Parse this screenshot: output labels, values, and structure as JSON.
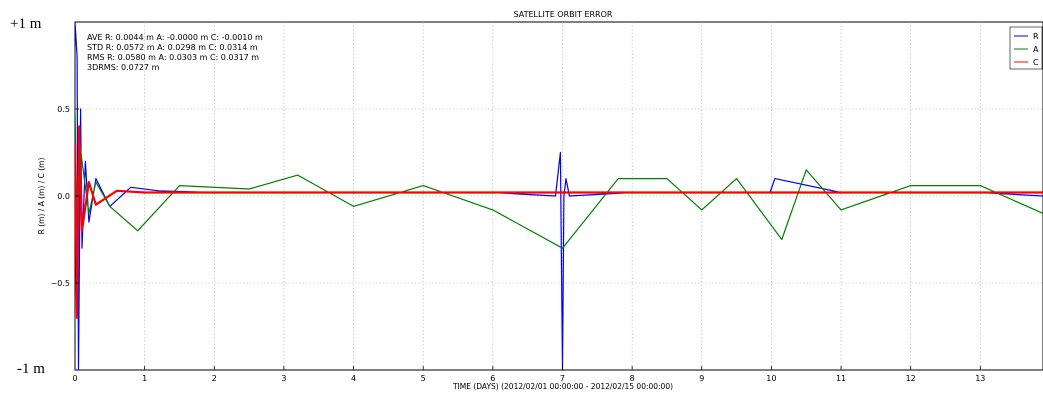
{
  "chart_data": {
    "type": "line",
    "title": "SATELLITE ORBIT ERROR",
    "xlabel": "TIME (DAYS) (2012/02/01 00:00:00 - 2012/02/15 00:00:00)",
    "ylabel": "R (m) / A (m) / C (m)",
    "xlim": [
      0,
      13.9
    ],
    "ylim": [
      -1,
      1
    ],
    "x_ticks": [
      0,
      1,
      2,
      3,
      4,
      5,
      6,
      7,
      8,
      9,
      10,
      11,
      12,
      13
    ],
    "x_tick_labels": [
      "0",
      "1",
      "2",
      "3",
      "4",
      "5",
      "6",
      "7",
      "8",
      "9",
      "10",
      "11",
      "12",
      "13"
    ],
    "y_ticks": [
      -0.5,
      0.0,
      0.5
    ],
    "y_tick_labels": [
      "−0.5",
      "0.0",
      "0.5"
    ],
    "y_extreme_labels": {
      "top": "+1 m",
      "bottom": "-1 m"
    },
    "grid": true,
    "legend_position": "top-right",
    "stats_text": [
      "AVE R: 0.0044 m A: -0.0000 m C: -0.0010 m",
      "STD R: 0.0572 m A: 0.0298 m C: 0.0314 m",
      "RMS R: 0.0580 m A: 0.0303 m C: 0.0317 m",
      "3DRMS: 0.0727 m"
    ],
    "series": [
      {
        "name": "R",
        "color": "#0000ff",
        "x": [
          0.0,
          0.03,
          0.05,
          0.08,
          0.1,
          0.15,
          0.2,
          0.3,
          0.5,
          0.8,
          1.2,
          2,
          3,
          4,
          5,
          6,
          6.9,
          6.97,
          7.0,
          7.02,
          7.05,
          7.1,
          8,
          9,
          9.98,
          10.05,
          11,
          12,
          13,
          13.9
        ],
        "values": [
          1.0,
          0.8,
          -1.0,
          0.5,
          -0.3,
          0.2,
          -0.15,
          0.1,
          -0.06,
          0.05,
          0.03,
          0.02,
          0.02,
          0.02,
          0.02,
          0.02,
          0.0,
          0.25,
          -1.0,
          0.0,
          0.1,
          0.0,
          0.02,
          0.02,
          0.02,
          0.1,
          0.02,
          0.02,
          0.02,
          0.0
        ]
      },
      {
        "name": "A",
        "color": "#008000",
        "x": [
          0.0,
          0.04,
          0.07,
          0.1,
          0.2,
          0.3,
          0.5,
          0.9,
          1.5,
          2.5,
          3.2,
          4,
          5,
          6,
          7,
          7.8,
          8.5,
          9,
          9.5,
          10.15,
          10.5,
          11,
          12,
          13,
          13.9
        ],
        "values": [
          0.5,
          -0.4,
          0.3,
          0.2,
          -0.1,
          0.08,
          -0.06,
          -0.2,
          0.06,
          0.04,
          0.12,
          -0.06,
          0.06,
          -0.08,
          -0.3,
          0.1,
          0.1,
          -0.08,
          0.1,
          -0.25,
          0.15,
          -0.08,
          0.06,
          0.06,
          -0.1
        ]
      },
      {
        "name": "C",
        "color": "#ff0000",
        "x": [
          0.0,
          0.03,
          0.06,
          0.1,
          0.2,
          0.3,
          0.6,
          1,
          2,
          3,
          4,
          5,
          6,
          7,
          8,
          9,
          10,
          11,
          12,
          13,
          13.9
        ],
        "values": [
          0.3,
          -0.7,
          0.4,
          -0.2,
          0.08,
          -0.05,
          0.03,
          0.02,
          0.02,
          0.02,
          0.02,
          0.02,
          0.02,
          0.02,
          0.02,
          0.02,
          0.02,
          0.02,
          0.02,
          0.02,
          0.02
        ]
      }
    ]
  }
}
